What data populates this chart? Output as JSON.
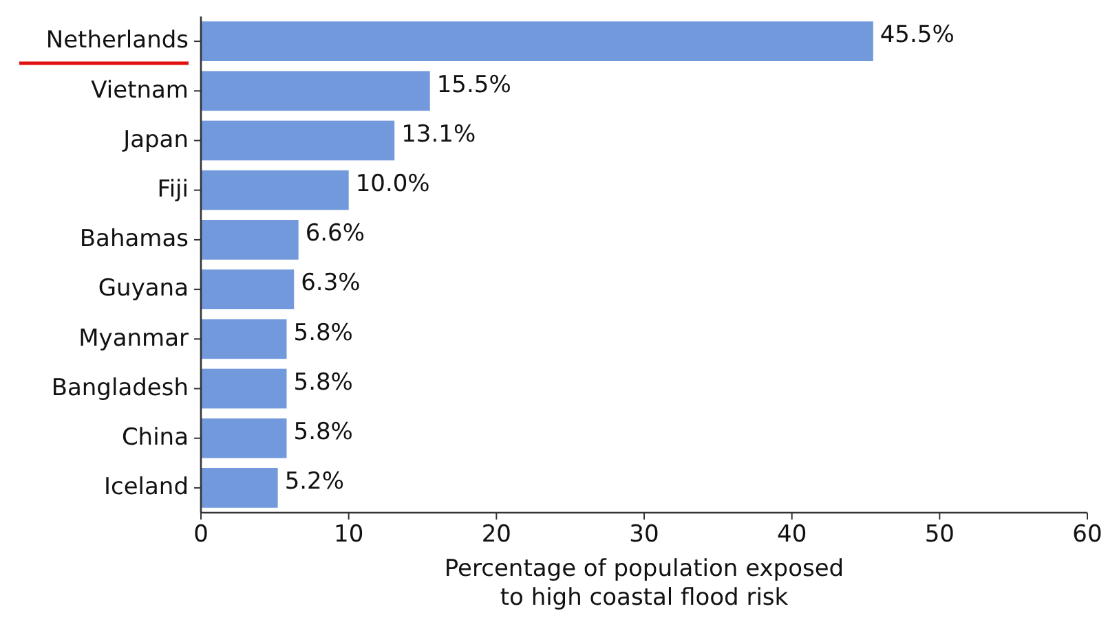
{
  "chart_data": {
    "type": "bar",
    "orientation": "horizontal",
    "categories": [
      "Netherlands",
      "Vietnam",
      "Japan",
      "Fiji",
      "Bahamas",
      "Guyana",
      "Myanmar",
      "Bangladesh",
      "China",
      "Iceland"
    ],
    "values": [
      45.5,
      15.5,
      13.1,
      10.0,
      6.6,
      6.3,
      5.8,
      5.8,
      5.8,
      5.2
    ],
    "value_labels": [
      "45.5%",
      "15.5%",
      "13.1%",
      "10.0%",
      "6.6%",
      "6.3%",
      "5.8%",
      "5.8%",
      "5.8%",
      "5.2%"
    ],
    "color": "#7199dc",
    "xlim": [
      0,
      60
    ],
    "xticks": [
      0,
      10,
      20,
      30,
      40,
      50,
      60
    ],
    "xlabel": "Percentage of population exposed\nto high coastal flood risk",
    "grid": false
  }
}
